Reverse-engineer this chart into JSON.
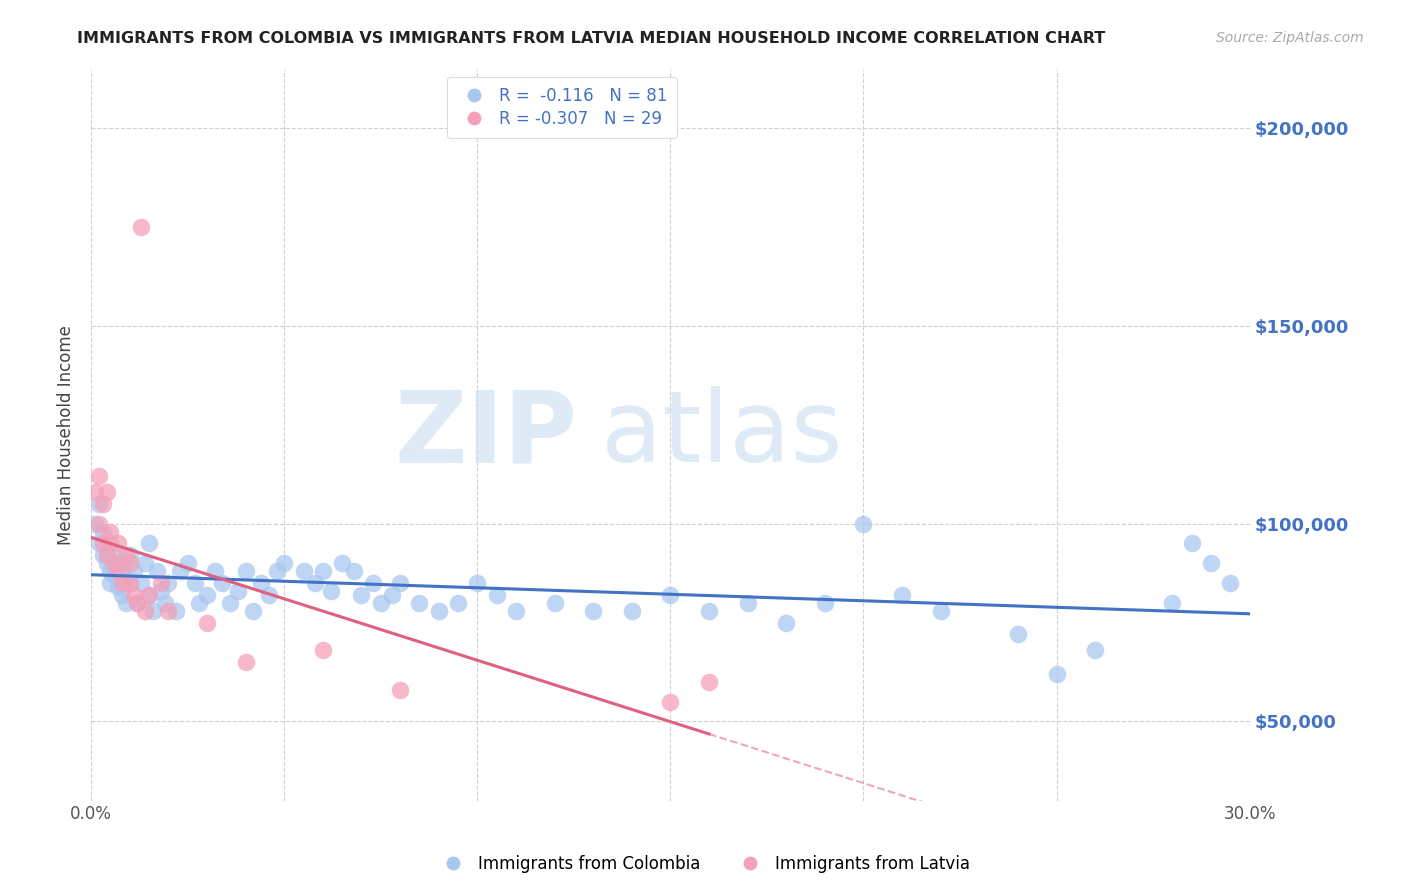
{
  "title": "IMMIGRANTS FROM COLOMBIA VS IMMIGRANTS FROM LATVIA MEDIAN HOUSEHOLD INCOME CORRELATION CHART",
  "source": "Source: ZipAtlas.com",
  "ylabel": "Median Household Income",
  "xlim": [
    0.0,
    0.3
  ],
  "ylim": [
    30000,
    215000
  ],
  "yticks": [
    50000,
    100000,
    150000,
    200000
  ],
  "xticks": [
    0.0,
    0.05,
    0.1,
    0.15,
    0.2,
    0.25,
    0.3
  ],
  "xtick_labels": [
    "0.0%",
    "",
    "",
    "",
    "",
    "",
    "30.0%"
  ],
  "ytick_labels_right": [
    "$50,000",
    "$100,000",
    "$150,000",
    "$200,000"
  ],
  "colombia_color": "#a8c8f0",
  "latvia_color": "#f5a0b8",
  "colombia_line_color": "#4472c4",
  "latvia_line_color": "#e06080",
  "colombia_R": -0.116,
  "colombia_N": 81,
  "latvia_R": -0.307,
  "latvia_N": 29,
  "legend_label_colombia": "Immigrants from Colombia",
  "legend_label_latvia": "Immigrants from Latvia",
  "watermark_zip": "ZIP",
  "watermark_atlas": "atlas",
  "colombia_x": [
    0.001,
    0.002,
    0.002,
    0.003,
    0.003,
    0.004,
    0.004,
    0.005,
    0.005,
    0.006,
    0.006,
    0.007,
    0.007,
    0.008,
    0.008,
    0.009,
    0.009,
    0.01,
    0.01,
    0.011,
    0.012,
    0.013,
    0.014,
    0.015,
    0.015,
    0.016,
    0.017,
    0.018,
    0.019,
    0.02,
    0.022,
    0.023,
    0.025,
    0.027,
    0.028,
    0.03,
    0.032,
    0.034,
    0.036,
    0.038,
    0.04,
    0.042,
    0.044,
    0.046,
    0.048,
    0.05,
    0.055,
    0.058,
    0.06,
    0.062,
    0.065,
    0.068,
    0.07,
    0.073,
    0.075,
    0.078,
    0.08,
    0.085,
    0.09,
    0.095,
    0.1,
    0.105,
    0.11,
    0.12,
    0.13,
    0.14,
    0.15,
    0.16,
    0.17,
    0.18,
    0.19,
    0.2,
    0.21,
    0.22,
    0.24,
    0.25,
    0.26,
    0.28,
    0.285,
    0.29,
    0.295
  ],
  "colombia_y": [
    100000,
    95000,
    105000,
    92000,
    98000,
    90000,
    93000,
    88000,
    85000,
    92000,
    87000,
    84000,
    90000,
    82000,
    88000,
    86000,
    80000,
    85000,
    92000,
    88000,
    80000,
    85000,
    90000,
    95000,
    82000,
    78000,
    88000,
    83000,
    80000,
    85000,
    78000,
    88000,
    90000,
    85000,
    80000,
    82000,
    88000,
    85000,
    80000,
    83000,
    88000,
    78000,
    85000,
    82000,
    88000,
    90000,
    88000,
    85000,
    88000,
    83000,
    90000,
    88000,
    82000,
    85000,
    80000,
    82000,
    85000,
    80000,
    78000,
    80000,
    85000,
    82000,
    78000,
    80000,
    78000,
    78000,
    82000,
    78000,
    80000,
    75000,
    80000,
    100000,
    82000,
    78000,
    72000,
    62000,
    68000,
    80000,
    95000,
    90000,
    85000
  ],
  "latvia_x": [
    0.001,
    0.002,
    0.002,
    0.003,
    0.003,
    0.004,
    0.004,
    0.005,
    0.005,
    0.006,
    0.007,
    0.007,
    0.008,
    0.009,
    0.01,
    0.01,
    0.011,
    0.012,
    0.013,
    0.014,
    0.015,
    0.018,
    0.02,
    0.03,
    0.04,
    0.06,
    0.08,
    0.15,
    0.16
  ],
  "latvia_y": [
    108000,
    100000,
    112000,
    95000,
    105000,
    108000,
    92000,
    95000,
    98000,
    90000,
    95000,
    88000,
    85000,
    92000,
    85000,
    90000,
    82000,
    80000,
    175000,
    78000,
    82000,
    85000,
    78000,
    75000,
    65000,
    68000,
    58000,
    55000,
    60000
  ]
}
